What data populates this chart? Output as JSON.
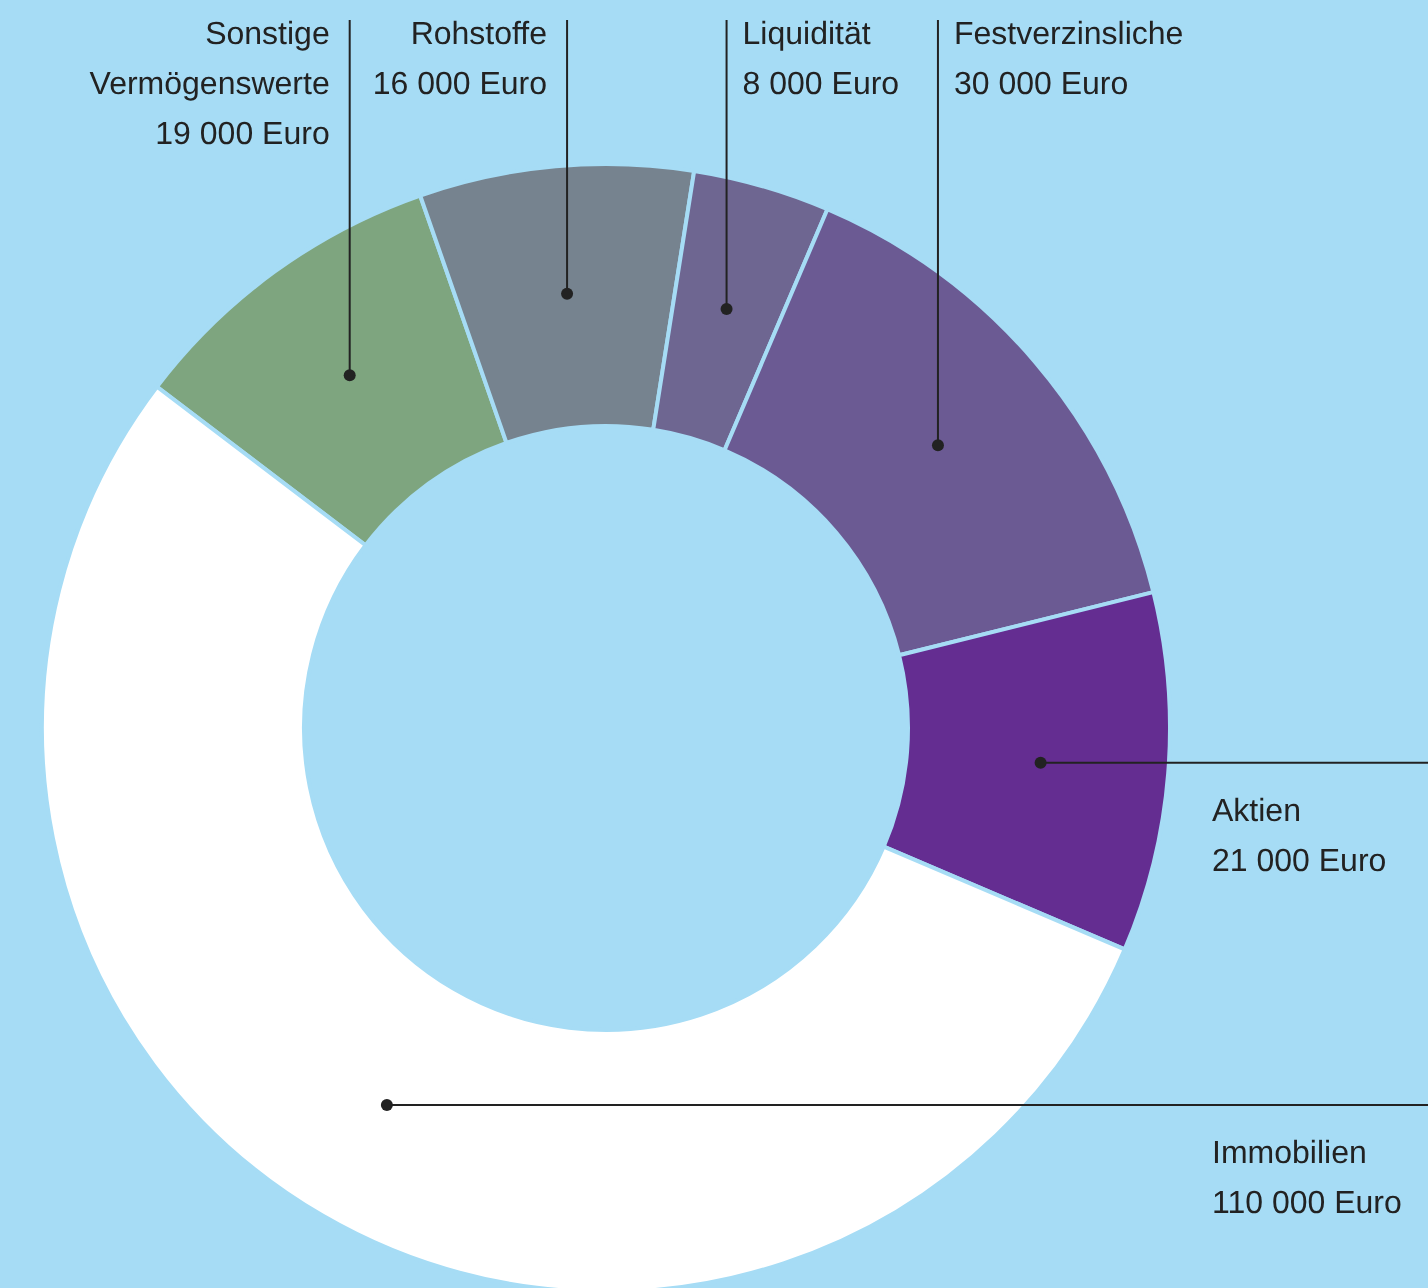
{
  "chart_data": {
    "type": "donut",
    "categories": [
      "Sonstige Vermögenswerte",
      "Rohstoffe",
      "Liquidität",
      "Festverzinsliche",
      "Aktien",
      "Immobilien"
    ],
    "values": [
      19000,
      16000,
      8000,
      30000,
      21000,
      110000
    ],
    "value_labels": [
      "19 000 Euro",
      "16 000 Euro",
      "8 000 Euro",
      "30 000 Euro",
      "21 000 Euro",
      "110 000 Euro"
    ],
    "colors": [
      "#7ea57f",
      "#76838f",
      "#6e6691",
      "#6b5a93",
      "#642d91",
      "#ffffff"
    ]
  }
}
